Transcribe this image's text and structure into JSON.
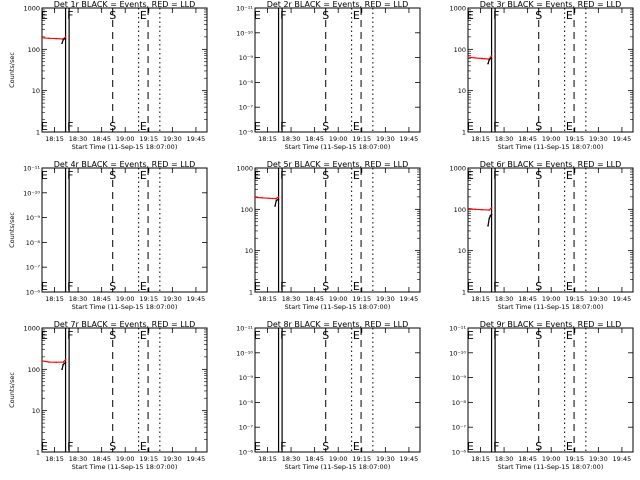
{
  "chart_data": [
    {
      "type": "line",
      "title": "Det 1r BLACK = Events, RED = LLD",
      "xlabel": "Start Time (11-Sep-15 18:07:00)",
      "ylabel": "Counts/sec",
      "y_scale": "log",
      "ylim": [
        1,
        1000
      ],
      "y_ticks": [
        "1",
        "10",
        "100",
        "1000"
      ],
      "x_ticks": [
        "18:15",
        "18:30",
        "18:45",
        "19:00",
        "19:15",
        "19:30",
        "19:45"
      ],
      "series": [
        {
          "color": "#ff0000",
          "x": [
            0.0,
            0.3,
            0.6,
            0.9,
            1.0
          ],
          "y": [
            190,
            185,
            182,
            178,
            200
          ]
        },
        {
          "color": "#000000",
          "x": [
            0.85,
            0.9,
            0.95,
            1.0
          ],
          "y": [
            140,
            170,
            180,
            180
          ]
        }
      ],
      "markers": [
        "E",
        "F",
        "S",
        "E"
      ],
      "marker_x": [
        0.1,
        1.2,
        3.0,
        4.3
      ],
      "solid_lines": [
        1.0,
        1.15
      ],
      "dashed_lines": [
        3.0,
        4.5
      ],
      "dotted_lines": [
        4.1,
        5.0
      ]
    },
    {
      "type": "line",
      "title": "Det 2r BLACK = Events, RED = LLD",
      "xlabel": "Start Time (11-Sep-15 18:07:00)",
      "ylabel": "",
      "y_scale": "log",
      "ylim": [
        1e-06,
        1e-11
      ],
      "y_ticks": [
        "10⁻⁶",
        "10⁻⁷",
        "10⁻⁸",
        "10⁻⁹",
        "10⁻¹⁰",
        "10⁻¹¹"
      ],
      "x_ticks": [
        "18:15",
        "18:30",
        "18:45",
        "19:00",
        "19:15",
        "19:30",
        "19:45"
      ],
      "series": [],
      "markers": [
        "E",
        "F",
        "S",
        "E"
      ],
      "marker_x": [
        0.1,
        1.2,
        3.0,
        4.3
      ],
      "solid_lines": [
        1.0,
        1.15
      ],
      "dashed_lines": [
        3.0,
        4.5
      ],
      "dotted_lines": [
        4.1,
        5.0
      ]
    },
    {
      "type": "line",
      "title": "Det 3r BLACK = Events, RED = LLD",
      "xlabel": "Start Time (11-Sep-15 18:07:00)",
      "ylabel": "",
      "y_scale": "log",
      "ylim": [
        1,
        1000
      ],
      "y_ticks": [
        "1",
        "10",
        "100",
        "1000"
      ],
      "x_ticks": [
        "18:15",
        "18:30",
        "18:45",
        "19:00",
        "19:15",
        "19:30",
        "19:45"
      ],
      "series": [
        {
          "color": "#ff0000",
          "x": [
            0.0,
            0.3,
            0.6,
            0.9,
            1.0
          ],
          "y": [
            65,
            62,
            60,
            58,
            70
          ]
        },
        {
          "color": "#000000",
          "x": [
            0.85,
            0.9,
            0.95,
            1.0
          ],
          "y": [
            45,
            55,
            60,
            60
          ]
        }
      ],
      "markers": [
        "E",
        "F",
        "S",
        "E"
      ],
      "marker_x": [
        0.1,
        1.2,
        3.0,
        4.3
      ],
      "solid_lines": [
        1.0,
        1.15
      ],
      "dashed_lines": [
        3.0,
        4.5
      ],
      "dotted_lines": [
        4.1,
        5.0
      ]
    },
    {
      "type": "line",
      "title": "Det 4r BLACK = Events, RED = LLD",
      "xlabel": "Start Time (11-Sep-15 18:07:00)",
      "ylabel": "Counts/sec",
      "y_scale": "log",
      "ylim": [
        1e-06,
        1e-11
      ],
      "y_ticks": [
        "10⁻⁶",
        "10⁻⁷",
        "10⁻⁸",
        "10⁻⁹",
        "10⁻¹⁰",
        "10⁻¹¹"
      ],
      "x_ticks": [
        "18:15",
        "18:30",
        "18:45",
        "19:00",
        "19:15",
        "19:30",
        "19:45"
      ],
      "series": [],
      "markers": [
        "E",
        "F",
        "S",
        "E"
      ],
      "marker_x": [
        0.1,
        1.2,
        3.0,
        4.3
      ],
      "solid_lines": [
        1.0,
        1.15
      ],
      "dashed_lines": [
        3.0,
        4.5
      ],
      "dotted_lines": [
        4.1,
        5.0
      ]
    },
    {
      "type": "line",
      "title": "Det 5r BLACK = Events, RED = LLD",
      "xlabel": "Start Time (11-Sep-15 18:07:00)",
      "ylabel": "",
      "y_scale": "log",
      "ylim": [
        1,
        1000
      ],
      "y_ticks": [
        "1",
        "10",
        "100",
        "1000"
      ],
      "x_ticks": [
        "18:15",
        "18:30",
        "18:45",
        "19:00",
        "19:15",
        "19:30",
        "19:45"
      ],
      "series": [
        {
          "color": "#ff0000",
          "x": [
            0.0,
            0.3,
            0.6,
            0.9,
            1.0
          ],
          "y": [
            195,
            190,
            185,
            182,
            200
          ]
        },
        {
          "color": "#000000",
          "x": [
            0.85,
            0.9,
            0.95,
            1.0
          ],
          "y": [
            120,
            160,
            170,
            175
          ]
        }
      ],
      "markers": [
        "E",
        "F",
        "S",
        "E"
      ],
      "marker_x": [
        0.1,
        1.2,
        3.0,
        4.3
      ],
      "solid_lines": [
        1.0,
        1.15
      ],
      "dashed_lines": [
        3.0,
        4.5
      ],
      "dotted_lines": [
        4.1,
        5.0
      ]
    },
    {
      "type": "line",
      "title": "Det 6r BLACK = Events, RED = LLD",
      "xlabel": "Start Time (11-Sep-15 18:07:00)",
      "ylabel": "",
      "y_scale": "log",
      "ylim": [
        1,
        1000
      ],
      "y_ticks": [
        "1",
        "10",
        "100",
        "1000"
      ],
      "x_ticks": [
        "18:15",
        "18:30",
        "18:45",
        "19:00",
        "19:15",
        "19:30",
        "19:45"
      ],
      "series": [
        {
          "color": "#ff0000",
          "x": [
            0.0,
            0.3,
            0.6,
            0.9,
            1.0
          ],
          "y": [
            105,
            100,
            98,
            96,
            110
          ]
        },
        {
          "color": "#000000",
          "x": [
            0.85,
            0.9,
            0.95,
            1.0
          ],
          "y": [
            40,
            60,
            70,
            75
          ]
        }
      ],
      "markers": [
        "E",
        "F",
        "S",
        "E"
      ],
      "marker_x": [
        0.1,
        1.2,
        3.0,
        4.3
      ],
      "solid_lines": [
        1.0,
        1.15
      ],
      "dashed_lines": [
        3.0,
        4.5
      ],
      "dotted_lines": [
        4.1,
        5.0
      ]
    },
    {
      "type": "line",
      "title": "Det 7r BLACK = Events, RED = LLD",
      "xlabel": "Start Time (11-Sep-15 18:07:00)",
      "ylabel": "Counts/sec",
      "y_scale": "log",
      "ylim": [
        1,
        1000
      ],
      "y_ticks": [
        "1",
        "10",
        "100",
        "1000"
      ],
      "x_ticks": [
        "18:15",
        "18:30",
        "18:45",
        "19:00",
        "19:15",
        "19:30",
        "19:45"
      ],
      "series": [
        {
          "color": "#ff0000",
          "x": [
            0.0,
            0.3,
            0.6,
            0.9,
            1.0
          ],
          "y": [
            160,
            150,
            148,
            150,
            170
          ]
        },
        {
          "color": "#000000",
          "x": [
            0.85,
            0.9,
            0.95,
            1.0
          ],
          "y": [
            100,
            130,
            140,
            145
          ]
        }
      ],
      "markers": [
        "E",
        "F",
        "S",
        "E"
      ],
      "marker_x": [
        0.1,
        1.2,
        3.0,
        4.3
      ],
      "solid_lines": [
        1.0,
        1.15
      ],
      "dashed_lines": [
        3.0,
        4.5
      ],
      "dotted_lines": [
        4.1,
        5.0
      ]
    },
    {
      "type": "line",
      "title": "Det 8r BLACK = Events, RED = LLD",
      "xlabel": "Start Time (11-Sep-15 18:07:00)",
      "ylabel": "",
      "y_scale": "log",
      "ylim": [
        1e-06,
        1e-11
      ],
      "y_ticks": [
        "10⁻⁶",
        "10⁻⁷",
        "10⁻⁸",
        "10⁻⁹",
        "10⁻¹⁰",
        "10⁻¹¹"
      ],
      "x_ticks": [
        "18:15",
        "18:30",
        "18:45",
        "19:00",
        "19:15",
        "19:30",
        "19:45"
      ],
      "series": [],
      "markers": [
        "E",
        "F",
        "S",
        "E"
      ],
      "marker_x": [
        0.1,
        1.2,
        3.0,
        4.3
      ],
      "solid_lines": [
        1.0,
        1.15
      ],
      "dashed_lines": [
        3.0,
        4.5
      ],
      "dotted_lines": [
        4.1,
        5.0
      ]
    },
    {
      "type": "line",
      "title": "Det 9r BLACK = Events, RED = LLD",
      "xlabel": "Start Time (11-Sep-15 18:07:00)",
      "ylabel": "",
      "y_scale": "log",
      "ylim": [
        1e-06,
        1e-11
      ],
      "y_ticks": [
        "10⁻⁶",
        "10⁻⁷",
        "10⁻⁸",
        "10⁻⁹",
        "10⁻¹⁰",
        "10⁻¹¹"
      ],
      "x_ticks": [
        "18:15",
        "18:30",
        "18:45",
        "19:00",
        "19:15",
        "19:30",
        "19:45"
      ],
      "series": [],
      "markers": [
        "E",
        "F",
        "S",
        "E"
      ],
      "marker_x": [
        0.1,
        1.2,
        3.0,
        4.3
      ],
      "solid_lines": [
        1.0,
        1.15
      ],
      "dashed_lines": [
        3.0,
        4.5
      ],
      "dotted_lines": [
        4.1,
        5.0
      ]
    }
  ]
}
